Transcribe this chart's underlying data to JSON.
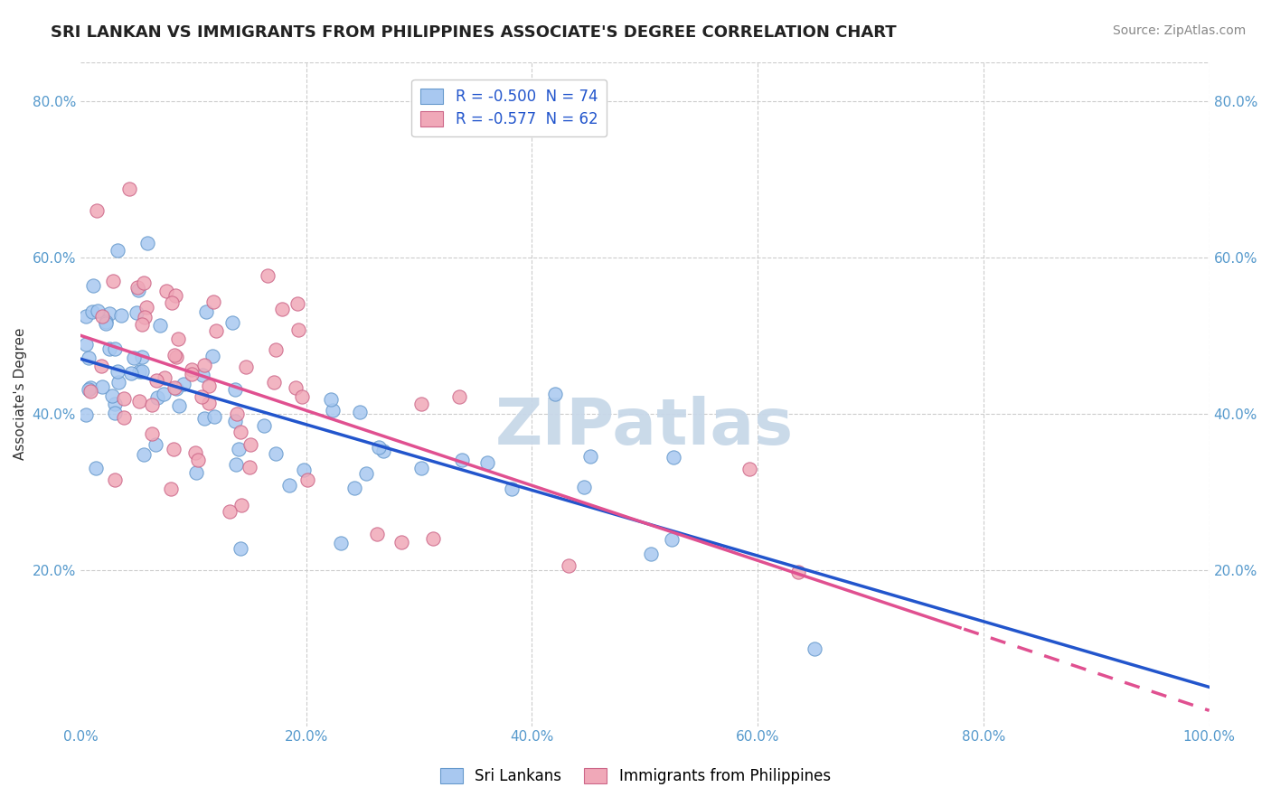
{
  "title": "SRI LANKAN VS IMMIGRANTS FROM PHILIPPINES ASSOCIATE'S DEGREE CORRELATION CHART",
  "source_text": "Source: ZipAtlas.com",
  "ylabel": "Associate's Degree",
  "x_min": 0.0,
  "x_max": 1.0,
  "y_min": 0.0,
  "y_max": 0.85,
  "x_ticks": [
    0.0,
    0.2,
    0.4,
    0.6,
    0.8,
    1.0
  ],
  "x_tick_labels": [
    "0.0%",
    "20.0%",
    "40.0%",
    "60.0%",
    "80.0%",
    "100.0%"
  ],
  "y_ticks": [
    0.2,
    0.4,
    0.6,
    0.8
  ],
  "y_tick_labels": [
    "20.0%",
    "40.0%",
    "60.0%",
    "80.0%"
  ],
  "legend_entry1": "R = -0.500  N = 74",
  "legend_entry2": "R = -0.577  N = 62",
  "legend_color1": "#a8c8f0",
  "legend_color2": "#f0a8b8",
  "line_color1": "#2255cc",
  "line_color2": "#e05090",
  "scatter_color1": "#a8c8f0",
  "scatter_color2": "#f0a8b8",
  "scatter_edgecolor1": "#6699cc",
  "scatter_edgecolor2": "#cc6688",
  "background_color": "#ffffff",
  "grid_color": "#cccccc",
  "watermark_text": "ZIPatlas",
  "watermark_color": "#c8d8e8",
  "title_fontsize": 13,
  "axis_label_fontsize": 11,
  "tick_fontsize": 11,
  "legend_fontsize": 12,
  "source_fontsize": 10,
  "slope1": -0.42,
  "intercept1": 0.47,
  "slope2": -0.48,
  "intercept2": 0.5
}
